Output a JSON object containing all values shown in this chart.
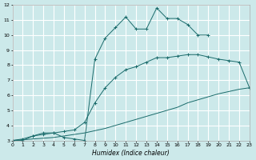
{
  "xlabel": "Humidex (Indice chaleur)",
  "xlim": [
    0,
    23
  ],
  "ylim": [
    3,
    12
  ],
  "yticks": [
    3,
    4,
    5,
    6,
    7,
    8,
    9,
    10,
    11,
    12
  ],
  "xticks": [
    0,
    1,
    2,
    3,
    4,
    5,
    6,
    7,
    8,
    9,
    10,
    11,
    12,
    13,
    14,
    15,
    16,
    17,
    18,
    19,
    20,
    21,
    22,
    23
  ],
  "bg_color": "#cce9ea",
  "grid_color": "#ffffff",
  "line_color": "#1a6b6b",
  "line1_x": [
    0,
    1,
    2,
    3,
    4,
    5,
    6,
    7,
    8,
    9,
    10,
    11,
    12,
    13,
    14,
    15,
    16,
    17,
    18,
    19
  ],
  "line1_y": [
    3.0,
    3.0,
    3.3,
    3.5,
    3.5,
    3.2,
    3.1,
    3.0,
    8.4,
    9.8,
    10.5,
    11.2,
    10.4,
    10.4,
    11.8,
    11.1,
    11.1,
    10.7,
    10.0,
    10.0
  ],
  "line2_x": [
    0,
    1,
    2,
    3,
    4,
    5,
    6,
    7,
    8,
    9,
    10,
    11,
    12,
    13,
    14,
    15,
    16,
    17,
    18,
    19,
    20,
    21,
    22,
    23
  ],
  "line2_y": [
    3.0,
    3.1,
    3.3,
    3.4,
    3.5,
    3.6,
    3.7,
    4.2,
    5.5,
    6.5,
    7.2,
    7.7,
    7.9,
    8.2,
    8.5,
    8.5,
    8.6,
    8.7,
    8.7,
    8.55,
    8.4,
    8.3,
    8.2,
    6.5
  ],
  "line3_x": [
    0,
    1,
    2,
    3,
    4,
    5,
    6,
    7,
    8,
    9,
    10,
    11,
    12,
    13,
    14,
    15,
    16,
    17,
    18,
    19,
    20,
    21,
    22,
    23
  ],
  "line3_y": [
    3.0,
    3.05,
    3.1,
    3.15,
    3.2,
    3.3,
    3.4,
    3.5,
    3.65,
    3.8,
    4.0,
    4.2,
    4.4,
    4.6,
    4.8,
    5.0,
    5.2,
    5.5,
    5.7,
    5.9,
    6.1,
    6.25,
    6.4,
    6.5
  ]
}
